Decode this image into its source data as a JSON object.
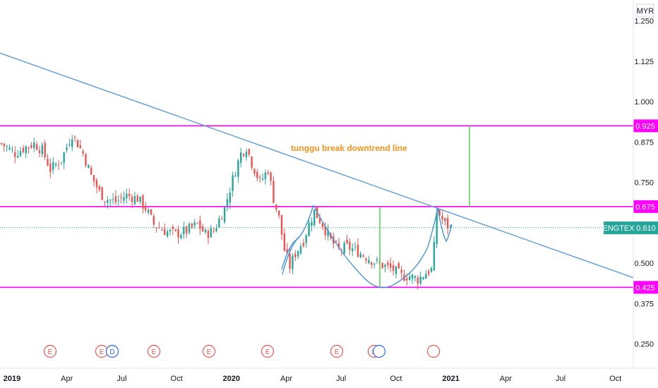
{
  "chart_data": {
    "type": "candlestick",
    "currency": "MYR",
    "symbol": "ENGTEX",
    "last_price": "0.610",
    "x_axis": {
      "labels": [
        "2019",
        "Apr",
        "Jul",
        "Oct",
        "2020",
        "Apr",
        "Jul",
        "Oct",
        "2021",
        "Apr",
        "Jul",
        "Oct"
      ],
      "range": [
        "2019-01",
        "2021-10"
      ]
    },
    "y_axis": {
      "ticks": [
        "1.250",
        "1.125",
        "1.000",
        "0.875",
        "0.750",
        "0.500",
        "0.375",
        "0.250"
      ],
      "range": [
        0.22,
        1.27
      ]
    },
    "horizontal_levels": [
      {
        "value": 0.925,
        "label": "0.925"
      },
      {
        "value": 0.675,
        "label": "0.675"
      },
      {
        "value": 0.425,
        "label": "0.425"
      }
    ],
    "annotation": "tunggu break downtrend line",
    "events": [
      "E",
      "E",
      "D",
      "E",
      "E",
      "E",
      "E",
      "E",
      "E"
    ],
    "ohlc_series": {
      "name": "ENGTEX",
      "anchor_points": [
        [
          0,
          0.87
        ],
        [
          5,
          0.84
        ],
        [
          9,
          0.86
        ],
        [
          12,
          0.87
        ],
        [
          15,
          0.85
        ],
        [
          18,
          0.79
        ],
        [
          22,
          0.82
        ],
        [
          26,
          0.9
        ],
        [
          30,
          0.84
        ],
        [
          33,
          0.77
        ],
        [
          36,
          0.72
        ],
        [
          38,
          0.7
        ],
        [
          42,
          0.69
        ],
        [
          46,
          0.71
        ],
        [
          50,
          0.7
        ],
        [
          53,
          0.67
        ],
        [
          56,
          0.62
        ],
        [
          60,
          0.6
        ],
        [
          64,
          0.59
        ],
        [
          68,
          0.6
        ],
        [
          72,
          0.62
        ],
        [
          75,
          0.59
        ],
        [
          78,
          0.6
        ],
        [
          82,
          0.67
        ],
        [
          85,
          0.76
        ],
        [
          88,
          0.84
        ],
        [
          90,
          0.86
        ],
        [
          92,
          0.81
        ],
        [
          95,
          0.75
        ],
        [
          98,
          0.79
        ],
        [
          100,
          0.7
        ],
        [
          102,
          0.64
        ],
        [
          104,
          0.54
        ],
        [
          106,
          0.49
        ],
        [
          108,
          0.53
        ],
        [
          111,
          0.57
        ],
        [
          113,
          0.62
        ],
        [
          115,
          0.66
        ],
        [
          118,
          0.62
        ],
        [
          121,
          0.57
        ],
        [
          124,
          0.54
        ],
        [
          127,
          0.55
        ],
        [
          130,
          0.54
        ],
        [
          134,
          0.52
        ],
        [
          138,
          0.5
        ],
        [
          141,
          0.49
        ],
        [
          144,
          0.48
        ],
        [
          147,
          0.46
        ],
        [
          150,
          0.46
        ],
        [
          153,
          0.45
        ],
        [
          156,
          0.47
        ],
        [
          158,
          0.48
        ],
        [
          159,
          0.55
        ],
        [
          160,
          0.66
        ],
        [
          161,
          0.65
        ],
        [
          163,
          0.62
        ],
        [
          165,
          0.61
        ]
      ]
    },
    "overlay_lines": [
      {
        "name": "downtrend",
        "points": [
          [
            "2018-12",
            1.15
          ],
          [
            "2021-10",
            0.455
          ]
        ]
      }
    ]
  },
  "labels": {
    "currency_label": "MYR",
    "symbol_badge": "ENGTEX",
    "price_badge": "0.610"
  }
}
